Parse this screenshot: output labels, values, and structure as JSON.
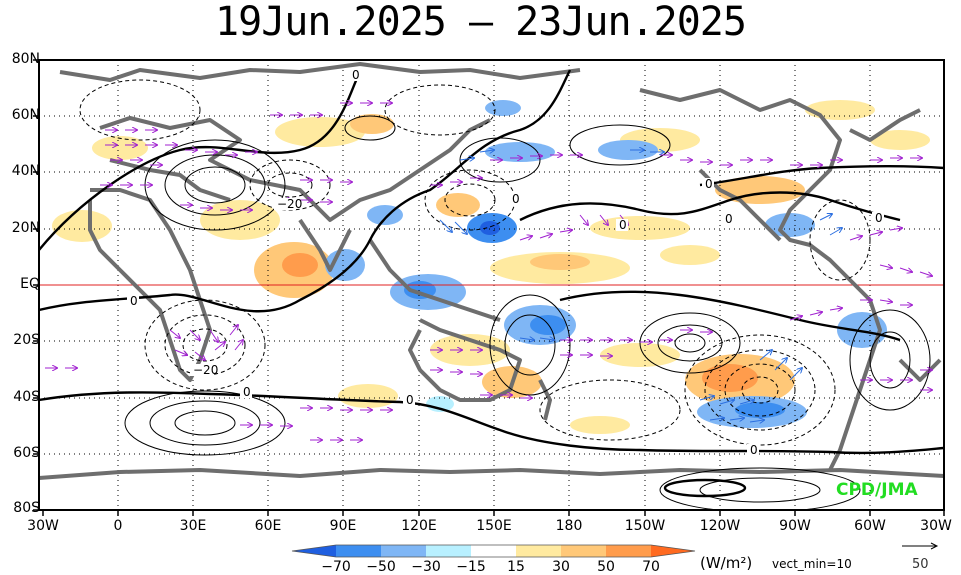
{
  "title": "19Jun.2025 – 23Jun.2025",
  "lat_labels": [
    "80N",
    "60N",
    "40N",
    "20N",
    "EQ",
    "20S",
    "40S",
    "60S",
    "80S"
  ],
  "lon_labels": [
    "30W",
    "0",
    "30E",
    "60E",
    "90E",
    "120E",
    "150E",
    "180",
    "150W",
    "120W",
    "90W",
    "60W",
    "30W"
  ],
  "colorbar": {
    "labels": [
      "−70",
      "−50",
      "−30",
      "−15",
      "15",
      "30",
      "50",
      "70"
    ],
    "colors": [
      "#1f5fe0",
      "#3d8ef0",
      "#7fb6f5",
      "#b8f0ff",
      "#ffffff",
      "#ffeaa0",
      "#ffc878",
      "#ff9c4c",
      "#ff6a20"
    ],
    "unit": "(W/m²)",
    "vect_min": "vect_min=10",
    "ref_vector": "50"
  },
  "contour_labels": {
    "c1": "0",
    "c2": "0",
    "c3": "0",
    "c4": "0",
    "c5": "0",
    "c6": "0",
    "c7": "0",
    "c8": "0",
    "c9": "0",
    "c10": "0",
    "c11": "−20",
    "c12": "−20"
  },
  "credit": "CPD/JMA",
  "colors": {
    "equator_line": "#e02020",
    "coastline": "#6e6e6e",
    "vector": "#a020d0",
    "credit": "#22dd22"
  }
}
